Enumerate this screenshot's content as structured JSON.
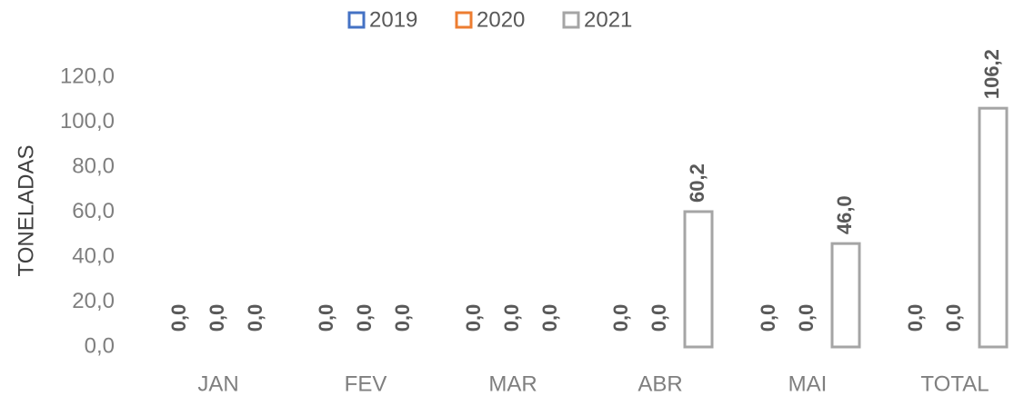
{
  "chart_data": {
    "type": "bar",
    "y_label": "TONELADAS",
    "categories": [
      "JAN",
      "FEV",
      "MAR",
      "ABR",
      "MAI",
      "TOTAL"
    ],
    "series": [
      {
        "name": "2019",
        "color": "#4472c4",
        "values": [
          0,
          0,
          0,
          0,
          0,
          0
        ],
        "value_labels": [
          "0,0",
          "0,0",
          "0,0",
          "0,0",
          "0,0",
          "0,0"
        ]
      },
      {
        "name": "2020",
        "color": "#ed7d31",
        "values": [
          0,
          0,
          0,
          0,
          0,
          0
        ],
        "value_labels": [
          "0,0",
          "0,0",
          "0,0",
          "0,0",
          "0,0",
          "0,0"
        ]
      },
      {
        "name": "2021",
        "color": "#a5a5a5",
        "values": [
          0,
          0,
          0,
          60.2,
          46.0,
          106.2
        ],
        "value_labels": [
          "0,0",
          "0,0",
          "0,0",
          "60,2",
          "46,0",
          "106,2"
        ]
      }
    ],
    "ylim": [
      0,
      120
    ],
    "yticks": [
      {
        "value": 0,
        "label": "0,0"
      },
      {
        "value": 20,
        "label": "20,0"
      },
      {
        "value": 40,
        "label": "40,0"
      },
      {
        "value": 60,
        "label": "60,0"
      },
      {
        "value": 80,
        "label": "80,0"
      },
      {
        "value": 100,
        "label": "100,0"
      },
      {
        "value": 120,
        "label": "120,0"
      }
    ],
    "legend": "top",
    "grid": false
  }
}
